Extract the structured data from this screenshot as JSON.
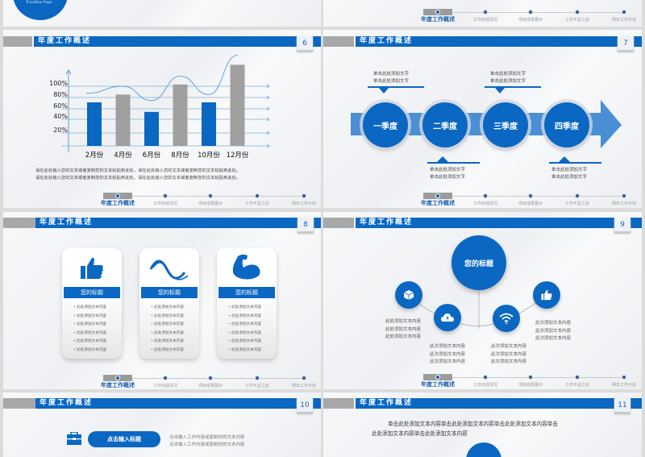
{
  "section_title": "年度工作概述",
  "nav": [
    "年度工作概述",
    "工作完成情况",
    "项目成果展示",
    "工作不足之处",
    "明年工作计划"
  ],
  "colors": {
    "accent": "#0a67c2",
    "gray": "#a8a8a8",
    "background": "#f4f5f7"
  },
  "slide5": {
    "subtitle": "TransBox Page"
  },
  "slide6": {
    "page": "6",
    "caption": [
      "请在此处输入您的文本或者复制您的文本粘贴到此处。请在此处输入您的文本或者复制您的文本粘贴到此处。",
      "请在此处输入您的文本或者复制您的文本粘贴到此处。请在此处输入您的文本或者复制您的文本粘贴到此处。"
    ]
  },
  "chart_data": {
    "type": "bar",
    "categories": [
      "2月份",
      "4月份",
      "6月份",
      "8月份",
      "10月份",
      "12月份"
    ],
    "yticks": [
      "20%",
      "40%",
      "60%",
      "80%",
      "100%"
    ],
    "series": [
      {
        "type": "bar",
        "values": [
          73,
          86,
          57,
          103,
          73,
          136
        ],
        "colors": [
          "#0a67c2",
          "#a0a0a0",
          "#0a67c2",
          "#a0a0a0",
          "#0a67c2",
          "#a0a0a0"
        ]
      },
      {
        "type": "line",
        "values": [
          88,
          100,
          76,
          117,
          86,
          152
        ],
        "color": "#5b9bd5"
      }
    ],
    "grid": true
  },
  "slide7": {
    "page": "7",
    "quarters": [
      "一季度",
      "二季度",
      "三季度",
      "四季度"
    ],
    "callout_text": "单击此处添加文字"
  },
  "slide8": {
    "page": "8",
    "cards": [
      {
        "icon": "thumbs-up-icon",
        "title": "您的标题"
      },
      {
        "icon": "wave-icon",
        "title": "您的标题"
      },
      {
        "icon": "flexed-arm-icon",
        "title": "您的标题"
      }
    ],
    "item_text": "此处添加文本内容"
  },
  "slide9": {
    "page": "9",
    "center_title": "您的标题",
    "icons": [
      "box-icon",
      "cloud-lightning-icon",
      "wifi-icon",
      "thumbs-up-icon"
    ],
    "text_left": "此处添加文本内容",
    "text_other": "此次添加文本内容"
  },
  "slide10": {
    "page": "10",
    "button": "点击输入标题",
    "text": "点击输入工作内容或复制你的文本内容"
  },
  "slide11": {
    "page": "11",
    "line1": "单击此处添加文本内容单击此处添加文本内容单击此处添加文本内容单击",
    "line2": "此处添加文本内容单击此处添加文本内容"
  }
}
